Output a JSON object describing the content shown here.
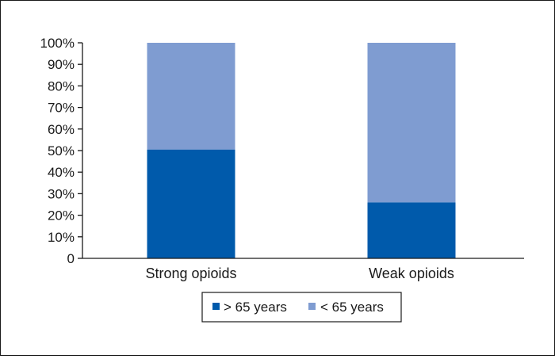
{
  "chart_data": {
    "type": "bar",
    "stacked": true,
    "categories": [
      "Strong opioids",
      "Weak opioids"
    ],
    "series": [
      {
        "name": "> 65 years",
        "values": [
          50.5,
          26
        ],
        "color": "#005aab"
      },
      {
        "name": "< 65 years",
        "values": [
          49.5,
          74
        ],
        "color": "#7f9cd1"
      }
    ],
    "ylim": [
      0,
      100
    ],
    "yticks": [
      "0",
      "10%",
      "20%",
      "30%",
      "40%",
      "50%",
      "60%",
      "70%",
      "80%",
      "90%",
      "100%"
    ],
    "grid": false,
    "legend_position": "bottom-center",
    "title": "",
    "xlabel": "",
    "ylabel": ""
  }
}
